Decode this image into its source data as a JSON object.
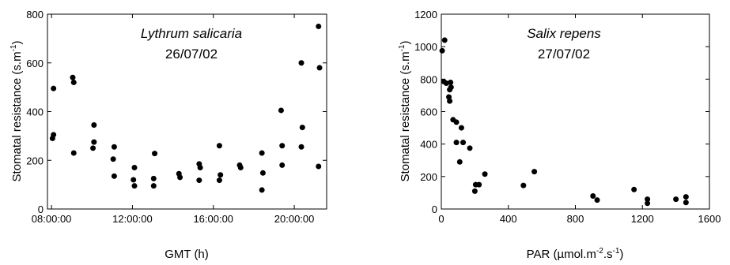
{
  "chart_data": [
    {
      "type": "scatter",
      "title": "",
      "annotation_species": "Lythrum salicaria",
      "annotation_date": "26/07/02",
      "xlabel": "GMT (h)",
      "ylabel_main": "Stomatal resistance (s.m",
      "ylabel_sup": "-1",
      "ylabel_end": ")",
      "x_unit": "hours",
      "xlim": [
        7.8,
        21.6
      ],
      "ylim": [
        0,
        800
      ],
      "xticks": [
        8,
        12,
        16,
        20
      ],
      "xtick_labels": [
        "08:00:00",
        "12:00:00",
        "16:00:00",
        "20:00:00"
      ],
      "yticks": [
        0,
        200,
        400,
        600,
        800
      ],
      "ytick_labels": [
        "0",
        "200",
        "400",
        "600",
        "800"
      ],
      "grid": false,
      "points": [
        {
          "x": 8.1,
          "y": 495
        },
        {
          "x": 8.1,
          "y": 305
        },
        {
          "x": 8.05,
          "y": 290
        },
        {
          "x": 9.05,
          "y": 540
        },
        {
          "x": 9.1,
          "y": 520
        },
        {
          "x": 9.1,
          "y": 230
        },
        {
          "x": 10.1,
          "y": 345
        },
        {
          "x": 10.1,
          "y": 275
        },
        {
          "x": 10.05,
          "y": 250
        },
        {
          "x": 11.1,
          "y": 255
        },
        {
          "x": 11.05,
          "y": 205
        },
        {
          "x": 11.1,
          "y": 135
        },
        {
          "x": 12.05,
          "y": 120
        },
        {
          "x": 12.1,
          "y": 95
        },
        {
          "x": 12.1,
          "y": 170
        },
        {
          "x": 13.05,
          "y": 125
        },
        {
          "x": 13.05,
          "y": 95
        },
        {
          "x": 13.1,
          "y": 228
        },
        {
          "x": 14.3,
          "y": 145
        },
        {
          "x": 14.35,
          "y": 130
        },
        {
          "x": 15.3,
          "y": 185
        },
        {
          "x": 15.35,
          "y": 170
        },
        {
          "x": 15.3,
          "y": 118
        },
        {
          "x": 16.3,
          "y": 260
        },
        {
          "x": 16.35,
          "y": 140
        },
        {
          "x": 16.3,
          "y": 118
        },
        {
          "x": 17.3,
          "y": 180
        },
        {
          "x": 17.35,
          "y": 170
        },
        {
          "x": 18.4,
          "y": 230
        },
        {
          "x": 18.45,
          "y": 148
        },
        {
          "x": 18.4,
          "y": 78
        },
        {
          "x": 19.35,
          "y": 405
        },
        {
          "x": 19.4,
          "y": 260
        },
        {
          "x": 19.4,
          "y": 180
        },
        {
          "x": 20.35,
          "y": 600
        },
        {
          "x": 20.4,
          "y": 335
        },
        {
          "x": 20.35,
          "y": 255
        },
        {
          "x": 21.2,
          "y": 750
        },
        {
          "x": 21.25,
          "y": 580
        },
        {
          "x": 21.2,
          "y": 175
        }
      ]
    },
    {
      "type": "scatter",
      "title": "",
      "annotation_species": "Salix repens",
      "annotation_date": "27/07/02",
      "xlabel_main": "PAR (µmol.m",
      "xlabel_sup1": "-2",
      "xlabel_mid": ".s",
      "xlabel_sup2": "-1",
      "xlabel_end": ")",
      "ylabel_main": "Stomatal resistance (s.m",
      "ylabel_sup": "-1",
      "ylabel_end": ")",
      "xlim": [
        0,
        1600
      ],
      "ylim": [
        0,
        1200
      ],
      "xticks": [
        0,
        400,
        800,
        1200,
        1600
      ],
      "xtick_labels": [
        "0",
        "400",
        "800",
        "1200",
        "1600"
      ],
      "yticks": [
        0,
        200,
        400,
        600,
        800,
        1000,
        1200
      ],
      "ytick_labels": [
        "0",
        "200",
        "400",
        "600",
        "800",
        "1000",
        "1200"
      ],
      "grid": false,
      "points": [
        {
          "x": 5,
          "y": 975
        },
        {
          "x": 20,
          "y": 1040
        },
        {
          "x": 15,
          "y": 785
        },
        {
          "x": 30,
          "y": 775
        },
        {
          "x": 55,
          "y": 780
        },
        {
          "x": 58,
          "y": 750
        },
        {
          "x": 50,
          "y": 735
        },
        {
          "x": 45,
          "y": 690
        },
        {
          "x": 50,
          "y": 665
        },
        {
          "x": 70,
          "y": 550
        },
        {
          "x": 90,
          "y": 535
        },
        {
          "x": 120,
          "y": 500
        },
        {
          "x": 90,
          "y": 410
        },
        {
          "x": 130,
          "y": 410
        },
        {
          "x": 170,
          "y": 375
        },
        {
          "x": 110,
          "y": 290
        },
        {
          "x": 260,
          "y": 215
        },
        {
          "x": 205,
          "y": 150
        },
        {
          "x": 225,
          "y": 150
        },
        {
          "x": 200,
          "y": 110
        },
        {
          "x": 490,
          "y": 145
        },
        {
          "x": 555,
          "y": 230
        },
        {
          "x": 905,
          "y": 80
        },
        {
          "x": 930,
          "y": 55
        },
        {
          "x": 1150,
          "y": 120
        },
        {
          "x": 1230,
          "y": 60
        },
        {
          "x": 1230,
          "y": 35
        },
        {
          "x": 1400,
          "y": 60
        },
        {
          "x": 1460,
          "y": 75
        },
        {
          "x": 1460,
          "y": 40
        }
      ]
    }
  ]
}
